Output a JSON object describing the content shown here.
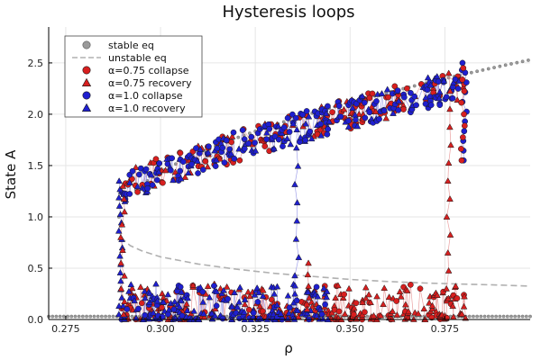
{
  "chart_data": {
    "type": "scatter",
    "title": "Hysteresis loops",
    "xlabel": "ρ",
    "ylabel": "State A",
    "xlim": [
      0.2705,
      0.3975
    ],
    "ylim": [
      0.0,
      2.85
    ],
    "xticks": [
      0.275,
      0.3,
      0.325,
      0.35,
      0.375
    ],
    "xtick_labels": [
      "0.275",
      "0.300",
      "0.325",
      "0.350",
      "0.375"
    ],
    "yticks": [
      0.0,
      0.5,
      1.0,
      1.5,
      2.0,
      2.5
    ],
    "ytick_labels": [
      "0.0",
      "0.5",
      "1.0",
      "1.5",
      "2.0",
      "2.5"
    ],
    "grid": true,
    "legend_position": "top-left",
    "colors": {
      "stable": "#9a9a9a",
      "unstable": "#b0b0b0",
      "red": "#d81f1f",
      "blue": "#1f1fd0",
      "red_line": "#e58a8a",
      "blue_line": "#8a8ae5",
      "marker_edge": "#1a1a1a"
    },
    "series": [
      {
        "name": "stable eq",
        "kind": "curve",
        "marker": "circle"
      },
      {
        "name": "unstable eq",
        "kind": "dashed"
      },
      {
        "name": "α=0.75 collapse",
        "kind": "scatter",
        "marker": "circle",
        "color": "red"
      },
      {
        "name": "α=0.75 recovery",
        "kind": "scatter",
        "marker": "triangle",
        "color": "red"
      },
      {
        "name": "α=1.0 collapse",
        "kind": "scatter",
        "marker": "circle",
        "color": "blue"
      },
      {
        "name": "α=1.0 recovery",
        "kind": "scatter",
        "marker": "triangle",
        "color": "blue"
      }
    ],
    "stable_low": {
      "x_start": 0.2705,
      "x_end": 0.3975,
      "y": 0.03,
      "step": 0.001
    },
    "stable_high": {
      "x_start": 0.289,
      "x_end": 0.3975,
      "y_at_start": 1.0,
      "y_at_end": 2.53,
      "step": 0.0015
    },
    "unstable_curve": [
      [
        0.2895,
        0.8
      ],
      [
        0.292,
        0.72
      ],
      [
        0.295,
        0.67
      ],
      [
        0.3,
        0.61
      ],
      [
        0.31,
        0.54
      ],
      [
        0.32,
        0.49
      ],
      [
        0.33,
        0.45
      ],
      [
        0.34,
        0.42
      ],
      [
        0.35,
        0.39
      ],
      [
        0.36,
        0.37
      ],
      [
        0.37,
        0.355
      ],
      [
        0.38,
        0.345
      ],
      [
        0.39,
        0.335
      ],
      [
        0.3975,
        0.325
      ]
    ],
    "collapse_branch": {
      "x_start": 0.2895,
      "x_end": 0.3805,
      "y_start": 1.25,
      "y_end": 2.3,
      "noise": 0.15
    },
    "recovery_branch": {
      "x_start": 0.2895,
      "x_end": 0.3805,
      "y_max": 0.35
    },
    "transitions": {
      "red_up_x": 0.376,
      "blue_up_x": 0.336,
      "red_mid_x": 0.339,
      "left_edge_x": 0.2895,
      "right_edge_x": 0.3802
    }
  }
}
